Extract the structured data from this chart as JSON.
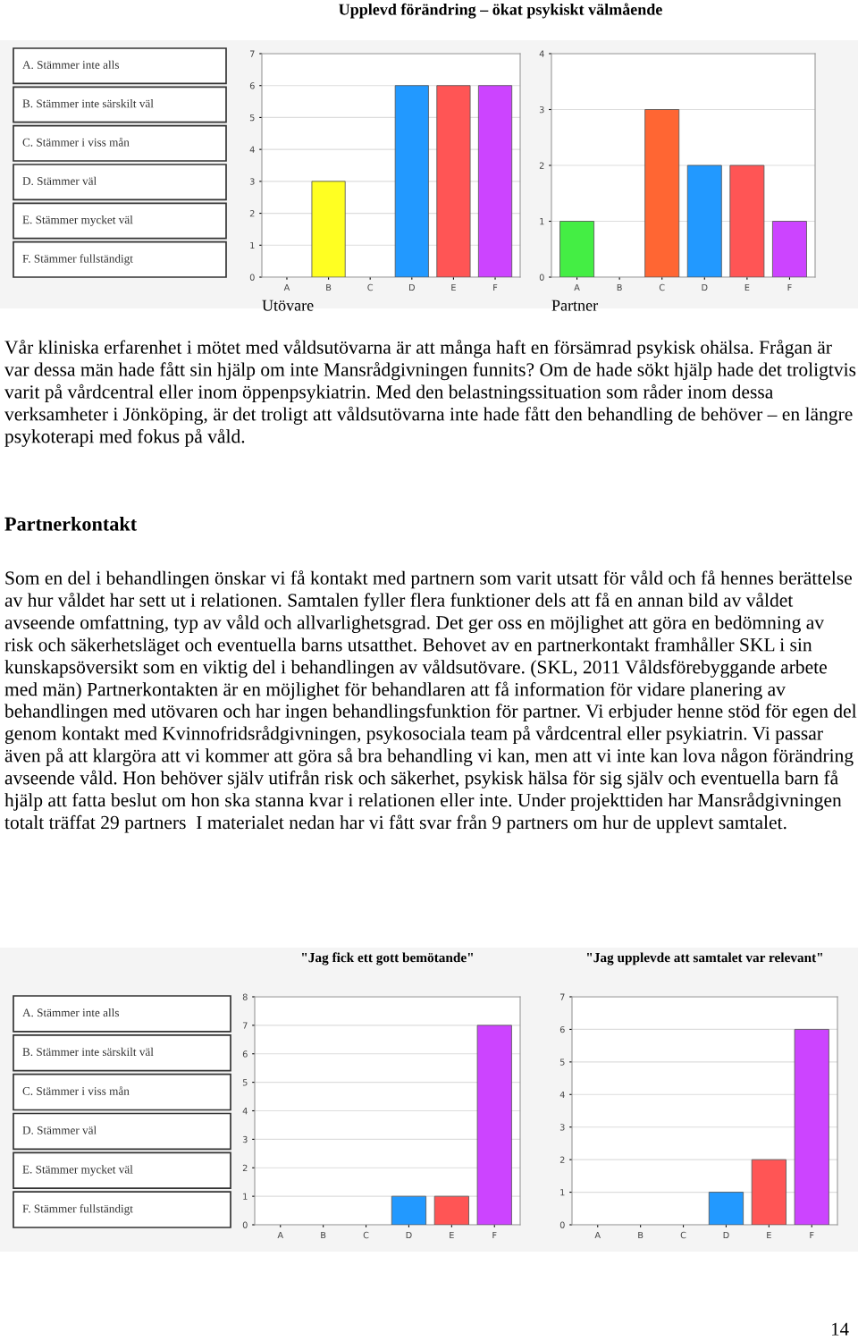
{
  "chart_data": [
    {
      "type": "other",
      "annotations": [
        "A. Stämmer inte alls",
        "B. Stämmer inte särskilt väl",
        "C. Stämmer i viss mån",
        "D. Stämmer väl",
        "E. Stämmer mycket väl",
        "F. Stämmer fullständigt"
      ]
    },
    {
      "type": "bar",
      "title": "Upplevd förändring – ökat psykiskt välmående",
      "xlabel": "Utövare",
      "categories": [
        "A",
        "B",
        "C",
        "D",
        "E",
        "F"
      ],
      "values": [
        0,
        3,
        0,
        6,
        6,
        6
      ],
      "colors": [
        "#44ee44",
        "#ffff22",
        "#ff6633",
        "#2299ff",
        "#ff5555",
        "#cc44ff"
      ],
      "ylim": [
        0,
        7
      ],
      "yticks": [
        0,
        1,
        2,
        3,
        4,
        5,
        6,
        7
      ],
      "grid": "y"
    },
    {
      "type": "bar",
      "xlabel": "Partner",
      "categories": [
        "A",
        "B",
        "C",
        "D",
        "E",
        "F"
      ],
      "values": [
        1,
        0,
        3,
        2,
        2,
        1
      ],
      "colors": [
        "#44ee44",
        "#ffff22",
        "#ff6633",
        "#2299ff",
        "#ff5555",
        "#cc44ff"
      ],
      "ylim": [
        0,
        4
      ],
      "yticks": [
        0,
        1,
        2,
        3,
        4
      ],
      "grid": "y"
    },
    {
      "type": "other",
      "annotations": [
        "Vår kliniska erfarenhet i mötet med våldsutövarna är att många haft en försämrad psykisk ohälsa. Frågan är var dessa män hade fått sin hjälp om inte Mansrådgivningen funnits? Om de hade sökt hjälp hade det troligtvis varit på vårdcentral eller inom öppenpsykiatrin. Med den belastningssituation som råder inom dessa verksamheter i Jönköping, är det troligt att våldsutövarna inte hade fått den behandling de behöver – en längre psykoterapi med fokus på våld.",
        "Partnerkontakt",
        "Som en del i behandlingen önskar vi få kontakt med partnern som varit utsatt för våld och få hennes berättelse av hur våldet har sett ut i relationen. Samtalen fyller flera funktioner dels att få en annan bild av våldet avseende omfattning, typ av våld och allvarlighetsgrad. Det ger oss en möjlighet att göra en bedömning av risk och säkerhetsläget och eventuella barns utsatthet. Behovet av en partnerkontakt framhåller SKL i sin kunskapsöversikt som en viktig del i behandlingen av våldsutövare. (SKL, 2011 Våldsförebyggande arbete med män) Partnerkontakten är en möjlighet för behandlaren att få information för vidare planering av behandlingen med utövaren och har ingen behandlingsfunktion för partner. Vi erbjuder henne stöd för egen del genom kontakt med Kvinnofridsrådgivningen, psykosociala team på vårdcentral eller psykiatrin. Vi passar även på att klargöra att vi kommer att göra så bra behandling vi kan, men att vi inte kan lova någon förändring avseende våld. Hon behöver själv utifrån risk och säkerhet, psykisk hälsa för sig själv och eventuella barn få hjälp att fatta beslut om hon ska stanna kvar i relationen eller inte. Under projekttiden har Mansrådgivningen totalt träffat 29 partners  I materialet nedan har vi fått svar från 9 partners om hur de upplevt samtalet."
      ]
    },
    {
      "type": "other",
      "annotations": [
        "A. Stämmer inte alls",
        "B. Stämmer inte särskilt väl",
        "C. Stämmer i viss mån",
        "D. Stämmer väl",
        "E. Stämmer mycket väl",
        "F. Stämmer fullständigt"
      ]
    },
    {
      "type": "bar",
      "title": "\"Jag fick ett gott bemötande\"",
      "categories": [
        "A",
        "B",
        "C",
        "D",
        "E",
        "F"
      ],
      "values": [
        0,
        0,
        0,
        1,
        1,
        7
      ],
      "colors": [
        "#44ee44",
        "#ffff22",
        "#ff6633",
        "#2299ff",
        "#ff5555",
        "#cc44ff"
      ],
      "ylim": [
        0,
        8
      ],
      "yticks": [
        0,
        1,
        2,
        3,
        4,
        5,
        6,
        7,
        8
      ],
      "grid": "y"
    },
    {
      "type": "bar",
      "title": "\"Jag upplevde att samtalet var relevant\"",
      "categories": [
        "A",
        "B",
        "C",
        "D",
        "E",
        "F"
      ],
      "values": [
        0,
        0,
        0,
        1,
        2,
        6
      ],
      "colors": [
        "#44ee44",
        "#ffff22",
        "#ff6633",
        "#2299ff",
        "#ff5555",
        "#cc44ff"
      ],
      "ylim": [
        0,
        7
      ],
      "yticks": [
        0,
        1,
        2,
        3,
        4,
        5,
        6,
        7
      ],
      "grid": "y"
    },
    {
      "type": "other",
      "annotations": [
        "14"
      ]
    }
  ]
}
